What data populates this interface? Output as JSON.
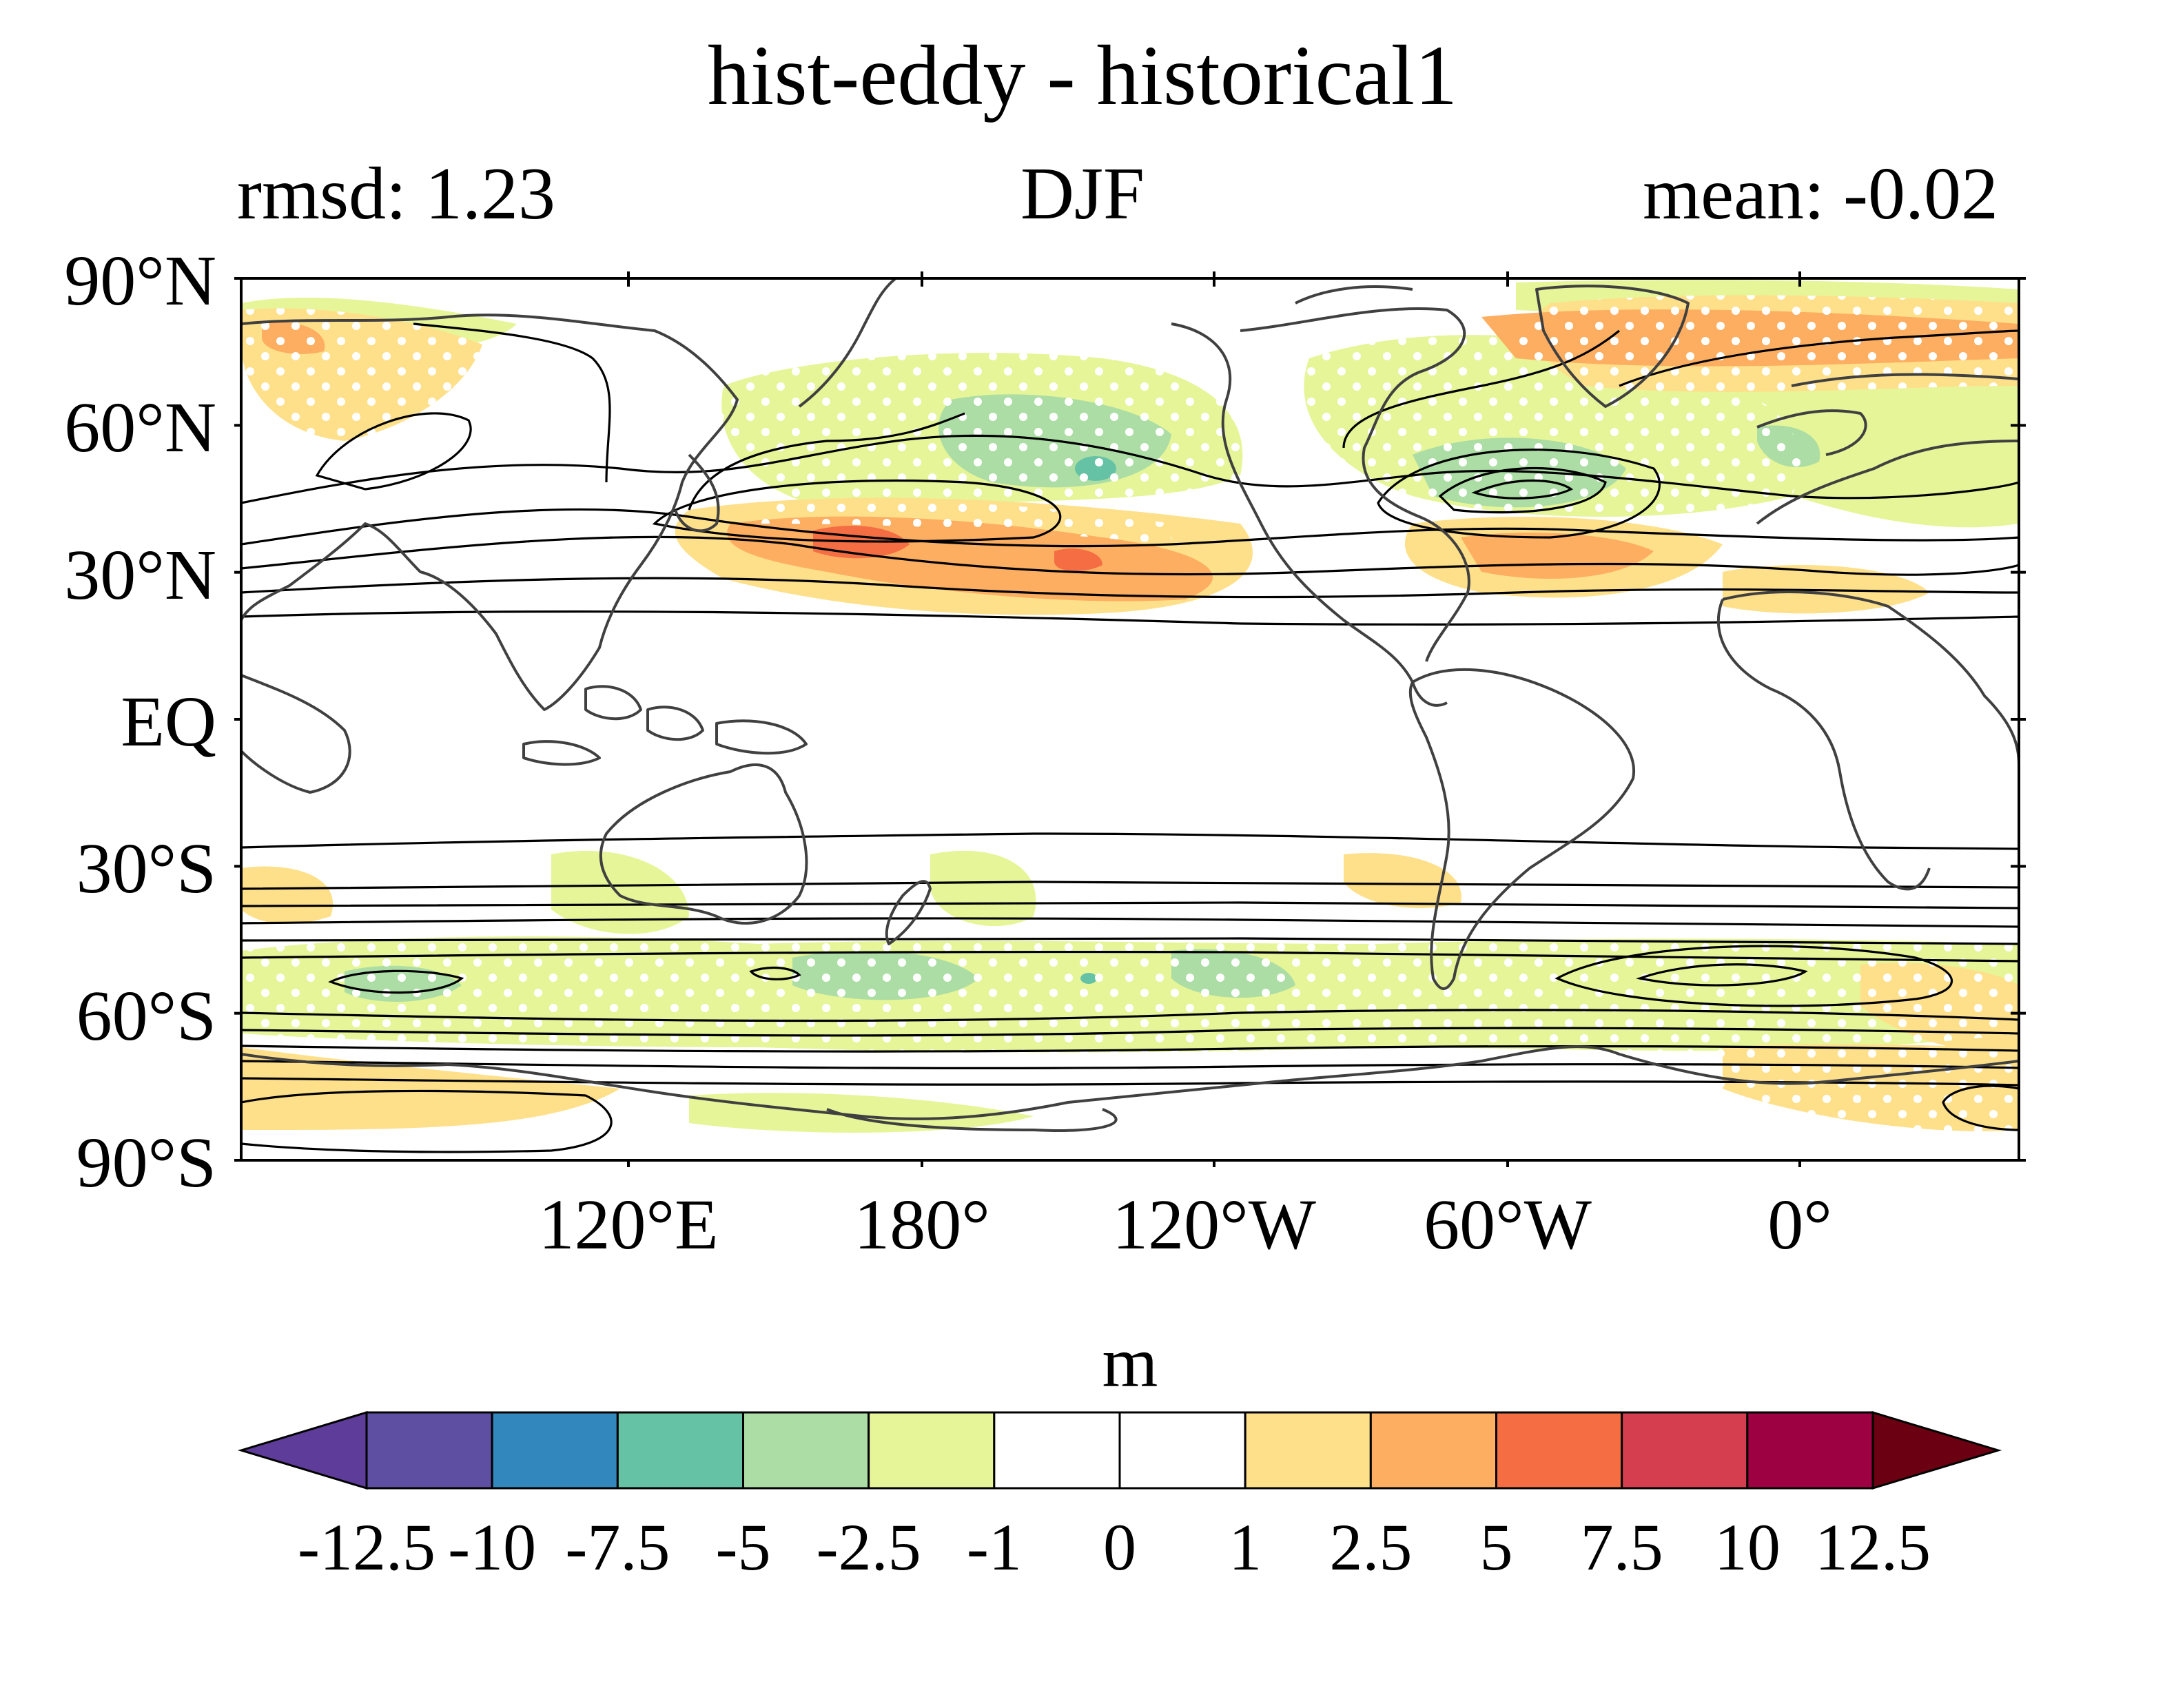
{
  "title": "hist-eddy - historical1",
  "subtitle_left": "rmsd: 1.23",
  "subtitle_center": "DJF",
  "subtitle_right": "mean: -0.02",
  "y_ticks": [
    "90°N",
    "60°N",
    "30°N",
    "EQ",
    "30°S",
    "60°S",
    "90°S"
  ],
  "x_ticks": [
    "120°E",
    "180°",
    "120°W",
    "60°W",
    "0°"
  ],
  "colorbar": {
    "label": "m",
    "levels": [
      "-12.5",
      "-10",
      "-7.5",
      "-5",
      "-2.5",
      "-1",
      "0",
      "1",
      "2.5",
      "5",
      "7.5",
      "10",
      "12.5"
    ],
    "colors": [
      "#5e3c99",
      "#5e4fa2",
      "#3288bd",
      "#66c2a5",
      "#abdda4",
      "#e6f598",
      "#ffffff",
      "#ffffff",
      "#fee08b",
      "#fdae61",
      "#f46d43",
      "#d53e4f",
      "#9e0142",
      "#6a0011"
    ]
  },
  "map_colors": {
    "coast": "#404040",
    "contour": "#000000",
    "stipple": "#ffffff"
  }
}
